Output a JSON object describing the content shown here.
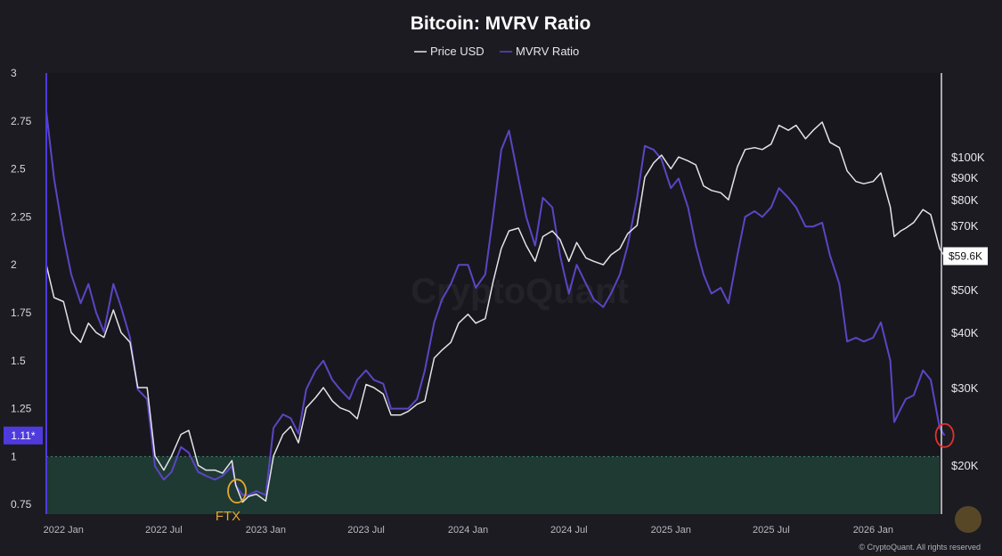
{
  "chart_data": {
    "type": "line",
    "title": "Bitcoin: MVRV Ratio",
    "legend": {
      "placement": "top-center",
      "entries": [
        "Price USD",
        "MVRV Ratio"
      ]
    },
    "left_axis": {
      "scale": "linear",
      "range": [
        0.7,
        3.0
      ],
      "ticks": [
        {
          "value": 0.75,
          "label": "0.75"
        },
        {
          "value": 1.0,
          "label": "1"
        },
        {
          "value": 1.25,
          "label": "1.25"
        },
        {
          "value": 1.5,
          "label": "1.5"
        },
        {
          "value": 1.75,
          "label": "1.75"
        },
        {
          "value": 2.0,
          "label": "2"
        },
        {
          "value": 2.25,
          "label": "2.25"
        },
        {
          "value": 2.5,
          "label": "2.5"
        },
        {
          "value": 2.75,
          "label": "2.75"
        },
        {
          "value": 3.0,
          "label": "3"
        }
      ]
    },
    "right_axis": {
      "scale": "log",
      "range": [
        15500,
        155000
      ],
      "ticks": [
        {
          "value": 20000,
          "label": "$20K"
        },
        {
          "value": 30000,
          "label": "$30K"
        },
        {
          "value": 40000,
          "label": "$40K"
        },
        {
          "value": 50000,
          "label": "$50K"
        },
        {
          "value": 60000,
          "label": ""
        },
        {
          "value": 70000,
          "label": "$70K"
        },
        {
          "value": 80000,
          "label": "$80K"
        },
        {
          "value": 90000,
          "label": "$90K"
        },
        {
          "value": 100000,
          "label": "$100K"
        }
      ]
    },
    "x_axis": {
      "range": [
        "2021-12",
        "2026-05"
      ],
      "ticks": [
        {
          "date": "2022-01",
          "label": "2022 Jan"
        },
        {
          "date": "2022-07",
          "label": "2022 Jul"
        },
        {
          "date": "2023-01",
          "label": "2023 Jan"
        },
        {
          "date": "2023-07",
          "label": "2023 Jul"
        },
        {
          "date": "2024-01",
          "label": "2024 Jan"
        },
        {
          "date": "2024-07",
          "label": "2024 Jul"
        },
        {
          "date": "2025-01",
          "label": "2025 Jan"
        },
        {
          "date": "2025-07",
          "label": "2025 Jul"
        },
        {
          "date": "2026-01",
          "label": "2026 Jan"
        }
      ]
    },
    "grid": false,
    "series": [
      {
        "name": "MVRV Ratio",
        "axis": "left",
        "color": "#5b45c4",
        "points": [
          [
            "2021-12-01",
            2.8
          ],
          [
            "2021-12-15",
            2.45
          ],
          [
            "2022-01-01",
            2.15
          ],
          [
            "2022-01-15",
            1.95
          ],
          [
            "2022-02-01",
            1.8
          ],
          [
            "2022-02-15",
            1.9
          ],
          [
            "2022-03-01",
            1.75
          ],
          [
            "2022-03-15",
            1.65
          ],
          [
            "2022-04-01",
            1.9
          ],
          [
            "2022-04-15",
            1.78
          ],
          [
            "2022-05-01",
            1.62
          ],
          [
            "2022-05-15",
            1.35
          ],
          [
            "2022-06-01",
            1.3
          ],
          [
            "2022-06-15",
            0.95
          ],
          [
            "2022-07-01",
            0.88
          ],
          [
            "2022-07-15",
            0.92
          ],
          [
            "2022-08-01",
            1.05
          ],
          [
            "2022-08-15",
            1.02
          ],
          [
            "2022-09-01",
            0.92
          ],
          [
            "2022-09-15",
            0.9
          ],
          [
            "2022-10-01",
            0.88
          ],
          [
            "2022-10-15",
            0.9
          ],
          [
            "2022-11-01",
            0.95
          ],
          [
            "2022-11-08",
            0.85
          ],
          [
            "2022-11-20",
            0.8
          ],
          [
            "2022-12-01",
            0.8
          ],
          [
            "2022-12-15",
            0.82
          ],
          [
            "2023-01-01",
            0.8
          ],
          [
            "2023-01-15",
            1.15
          ],
          [
            "2023-02-01",
            1.22
          ],
          [
            "2023-02-15",
            1.2
          ],
          [
            "2023-03-01",
            1.12
          ],
          [
            "2023-03-15",
            1.35
          ],
          [
            "2023-04-01",
            1.45
          ],
          [
            "2023-04-15",
            1.5
          ],
          [
            "2023-05-01",
            1.4
          ],
          [
            "2023-05-15",
            1.35
          ],
          [
            "2023-06-01",
            1.3
          ],
          [
            "2023-06-15",
            1.4
          ],
          [
            "2023-07-01",
            1.45
          ],
          [
            "2023-07-15",
            1.4
          ],
          [
            "2023-08-01",
            1.38
          ],
          [
            "2023-08-15",
            1.25
          ],
          [
            "2023-09-01",
            1.25
          ],
          [
            "2023-09-15",
            1.25
          ],
          [
            "2023-10-01",
            1.3
          ],
          [
            "2023-10-15",
            1.45
          ],
          [
            "2023-11-01",
            1.7
          ],
          [
            "2023-11-15",
            1.82
          ],
          [
            "2023-12-01",
            1.9
          ],
          [
            "2023-12-15",
            2.0
          ],
          [
            "2024-01-01",
            2.0
          ],
          [
            "2024-01-15",
            1.88
          ],
          [
            "2024-02-01",
            1.95
          ],
          [
            "2024-02-15",
            2.25
          ],
          [
            "2024-03-01",
            2.6
          ],
          [
            "2024-03-15",
            2.7
          ],
          [
            "2024-04-01",
            2.45
          ],
          [
            "2024-04-15",
            2.25
          ],
          [
            "2024-05-01",
            2.1
          ],
          [
            "2024-05-15",
            2.35
          ],
          [
            "2024-06-01",
            2.3
          ],
          [
            "2024-06-15",
            2.05
          ],
          [
            "2024-07-01",
            1.85
          ],
          [
            "2024-07-15",
            2.0
          ],
          [
            "2024-08-01",
            1.9
          ],
          [
            "2024-08-15",
            1.82
          ],
          [
            "2024-09-01",
            1.78
          ],
          [
            "2024-09-15",
            1.85
          ],
          [
            "2024-10-01",
            1.95
          ],
          [
            "2024-10-15",
            2.1
          ],
          [
            "2024-11-01",
            2.35
          ],
          [
            "2024-11-15",
            2.62
          ],
          [
            "2024-12-01",
            2.6
          ],
          [
            "2024-12-15",
            2.55
          ],
          [
            "2025-01-01",
            2.4
          ],
          [
            "2025-01-15",
            2.45
          ],
          [
            "2025-02-01",
            2.3
          ],
          [
            "2025-02-15",
            2.1
          ],
          [
            "2025-03-01",
            1.95
          ],
          [
            "2025-03-15",
            1.85
          ],
          [
            "2025-04-01",
            1.88
          ],
          [
            "2025-04-15",
            1.8
          ],
          [
            "2025-05-01",
            2.05
          ],
          [
            "2025-05-15",
            2.25
          ],
          [
            "2025-06-01",
            2.28
          ],
          [
            "2025-06-15",
            2.25
          ],
          [
            "2025-07-01",
            2.3
          ],
          [
            "2025-07-15",
            2.4
          ],
          [
            "2025-08-01",
            2.35
          ],
          [
            "2025-08-15",
            2.3
          ],
          [
            "2025-09-01",
            2.2
          ],
          [
            "2025-09-15",
            2.2
          ],
          [
            "2025-10-01",
            2.22
          ],
          [
            "2025-10-15",
            2.05
          ],
          [
            "2025-11-01",
            1.9
          ],
          [
            "2025-11-15",
            1.6
          ],
          [
            "2025-12-01",
            1.62
          ],
          [
            "2025-12-15",
            1.6
          ],
          [
            "2026-01-01",
            1.62
          ],
          [
            "2026-01-15",
            1.7
          ],
          [
            "2026-02-01",
            1.5
          ],
          [
            "2026-02-08",
            1.18
          ],
          [
            "2026-02-20",
            1.25
          ],
          [
            "2026-03-01",
            1.3
          ],
          [
            "2026-03-15",
            1.32
          ],
          [
            "2026-04-01",
            1.45
          ],
          [
            "2026-04-15",
            1.4
          ],
          [
            "2026-05-01",
            1.15
          ],
          [
            "2026-05-10",
            1.11
          ]
        ]
      },
      {
        "name": "Price USD",
        "axis": "right",
        "color": "#e4e4e8",
        "points": [
          [
            "2021-12-01",
            57000
          ],
          [
            "2021-12-15",
            48000
          ],
          [
            "2022-01-01",
            47000
          ],
          [
            "2022-01-15",
            40000
          ],
          [
            "2022-02-01",
            38000
          ],
          [
            "2022-02-15",
            42000
          ],
          [
            "2022-03-01",
            40000
          ],
          [
            "2022-03-15",
            39000
          ],
          [
            "2022-04-01",
            45000
          ],
          [
            "2022-04-15",
            40000
          ],
          [
            "2022-05-01",
            38000
          ],
          [
            "2022-05-15",
            30000
          ],
          [
            "2022-06-01",
            30000
          ],
          [
            "2022-06-15",
            21000
          ],
          [
            "2022-07-01",
            19500
          ],
          [
            "2022-07-15",
            21000
          ],
          [
            "2022-08-01",
            23500
          ],
          [
            "2022-08-15",
            24000
          ],
          [
            "2022-09-01",
            20000
          ],
          [
            "2022-09-15",
            19500
          ],
          [
            "2022-10-01",
            19500
          ],
          [
            "2022-10-15",
            19200
          ],
          [
            "2022-11-01",
            20500
          ],
          [
            "2022-11-08",
            18000
          ],
          [
            "2022-11-20",
            16500
          ],
          [
            "2022-12-01",
            17000
          ],
          [
            "2022-12-15",
            17200
          ],
          [
            "2023-01-01",
            16600
          ],
          [
            "2023-01-15",
            21000
          ],
          [
            "2023-02-01",
            23500
          ],
          [
            "2023-02-15",
            24500
          ],
          [
            "2023-03-01",
            22500
          ],
          [
            "2023-03-15",
            27000
          ],
          [
            "2023-04-01",
            28500
          ],
          [
            "2023-04-15",
            30000
          ],
          [
            "2023-05-01",
            28000
          ],
          [
            "2023-05-15",
            27000
          ],
          [
            "2023-06-01",
            26500
          ],
          [
            "2023-06-15",
            25500
          ],
          [
            "2023-07-01",
            30500
          ],
          [
            "2023-07-15",
            30000
          ],
          [
            "2023-08-01",
            29000
          ],
          [
            "2023-08-15",
            26000
          ],
          [
            "2023-09-01",
            26000
          ],
          [
            "2023-09-15",
            26500
          ],
          [
            "2023-10-01",
            27500
          ],
          [
            "2023-10-15",
            28000
          ],
          [
            "2023-11-01",
            35000
          ],
          [
            "2023-11-15",
            36500
          ],
          [
            "2023-12-01",
            38000
          ],
          [
            "2023-12-15",
            42000
          ],
          [
            "2024-01-01",
            44000
          ],
          [
            "2024-01-15",
            42000
          ],
          [
            "2024-02-01",
            43000
          ],
          [
            "2024-02-15",
            52000
          ],
          [
            "2024-03-01",
            62000
          ],
          [
            "2024-03-15",
            68000
          ],
          [
            "2024-04-01",
            69000
          ],
          [
            "2024-04-15",
            63000
          ],
          [
            "2024-05-01",
            58000
          ],
          [
            "2024-05-15",
            66000
          ],
          [
            "2024-06-01",
            68000
          ],
          [
            "2024-06-15",
            65000
          ],
          [
            "2024-07-01",
            58000
          ],
          [
            "2024-07-15",
            64000
          ],
          [
            "2024-08-01",
            59000
          ],
          [
            "2024-08-15",
            58000
          ],
          [
            "2024-09-01",
            57000
          ],
          [
            "2024-09-15",
            60000
          ],
          [
            "2024-10-01",
            62000
          ],
          [
            "2024-10-15",
            67000
          ],
          [
            "2024-11-01",
            70000
          ],
          [
            "2024-11-15",
            90000
          ],
          [
            "2024-12-01",
            97000
          ],
          [
            "2024-12-15",
            101000
          ],
          [
            "2025-01-01",
            94000
          ],
          [
            "2025-01-15",
            100000
          ],
          [
            "2025-02-01",
            98000
          ],
          [
            "2025-02-15",
            96000
          ],
          [
            "2025-03-01",
            86000
          ],
          [
            "2025-03-15",
            84000
          ],
          [
            "2025-04-01",
            83000
          ],
          [
            "2025-04-15",
            80000
          ],
          [
            "2025-05-01",
            95000
          ],
          [
            "2025-05-15",
            104000
          ],
          [
            "2025-06-01",
            105000
          ],
          [
            "2025-06-15",
            104000
          ],
          [
            "2025-07-01",
            107000
          ],
          [
            "2025-07-15",
            118000
          ],
          [
            "2025-08-01",
            115000
          ],
          [
            "2025-08-15",
            118000
          ],
          [
            "2025-09-01",
            110000
          ],
          [
            "2025-09-15",
            115000
          ],
          [
            "2025-10-01",
            120000
          ],
          [
            "2025-10-15",
            108000
          ],
          [
            "2025-11-01",
            105000
          ],
          [
            "2025-11-15",
            93000
          ],
          [
            "2025-12-01",
            88000
          ],
          [
            "2025-12-15",
            87000
          ],
          [
            "2026-01-01",
            88000
          ],
          [
            "2026-01-15",
            92000
          ],
          [
            "2026-02-01",
            77000
          ],
          [
            "2026-02-08",
            66000
          ],
          [
            "2026-02-20",
            68000
          ],
          [
            "2026-03-01",
            69000
          ],
          [
            "2026-03-15",
            71000
          ],
          [
            "2026-04-01",
            76000
          ],
          [
            "2026-04-15",
            74000
          ],
          [
            "2026-05-01",
            62000
          ],
          [
            "2026-05-10",
            59600
          ]
        ]
      }
    ],
    "highlight_band": {
      "axis": "left",
      "range": [
        0.7,
        1.0
      ],
      "color": "#1f3a33"
    },
    "reference_line": {
      "axis": "left",
      "value": 1.0,
      "style": "dotted",
      "color": "#3f8a6d"
    },
    "current_value_badges": [
      {
        "axis": "left",
        "value": 1.11,
        "label": "1.11*",
        "color": "#4f3bdc"
      },
      {
        "axis": "right",
        "value": 59600,
        "label": "$59.6K",
        "color": "#ffffff"
      }
    ],
    "annotations": [
      {
        "label": "FTX",
        "date": "2022-11-10",
        "value": 0.82,
        "marker": "circle",
        "color": "#e6a72b"
      },
      {
        "label": "",
        "date": "2026-05-10",
        "value": 1.11,
        "marker": "circle",
        "color": "#e0332b"
      }
    ],
    "watermark": "CryptoQuant",
    "credit": "© CryptoQuant. All rights reserved"
  },
  "colors": {
    "background": "#1c1b22",
    "plot_background": "#18171d"
  }
}
